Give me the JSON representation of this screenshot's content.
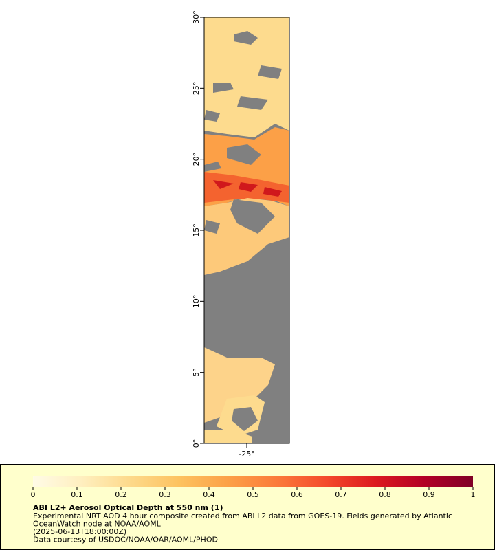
{
  "map": {
    "lat_range": [
      0,
      30
    ],
    "lon_range": [
      -28,
      -22
    ],
    "lat_ticks": [
      {
        "value": 0,
        "label": "0°"
      },
      {
        "value": 5,
        "label": "5°"
      },
      {
        "value": 10,
        "label": "10°"
      },
      {
        "value": 15,
        "label": "15°"
      },
      {
        "value": 20,
        "label": "20°"
      },
      {
        "value": 25,
        "label": "25°"
      },
      {
        "value": 30,
        "label": "30°"
      }
    ],
    "lon_ticks": [
      {
        "value": -25,
        "label": "-25°"
      }
    ],
    "colorbar": {
      "range": [
        0,
        1
      ],
      "ticks": [
        0,
        0.1,
        0.2,
        0.3,
        0.4,
        0.5,
        0.6,
        0.7,
        0.8,
        0.9,
        1
      ],
      "colors": [
        "#fffbe6",
        "#ffefbf",
        "#fdd98a",
        "#fdc25f",
        "#fca047",
        "#fb7a3a",
        "#f44a2b",
        "#dc1a1f",
        "#b30026",
        "#800026"
      ]
    },
    "title": "ABI L2+ Aerosol Optical Depth at 550 nm (1)",
    "description_lines": [
      "Experimental NRT AOD 4 hour composite created from ABI L2 data from GOES-19. Fields generated by Atlantic",
      "OceanWatch node at NOAA/AOML",
      "(2025-06-13T18:00:00Z)",
      "Data courtesy of USDOC/NOAA/OAR/AOML/PHOD"
    ]
  }
}
